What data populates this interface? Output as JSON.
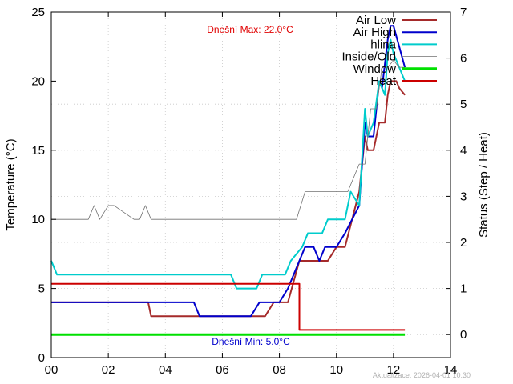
{
  "chart_data": {
    "type": "line",
    "ylabel": "Temperature (°C)",
    "y2label": "Status (Step / Heat)",
    "xlim": [
      0,
      14
    ],
    "ylim": [
      0,
      25
    ],
    "y2lim": [
      -0.5,
      7
    ],
    "grid": true,
    "legend_position": "top-right",
    "x_ticks": [
      {
        "value": 0,
        "label": "00"
      },
      {
        "value": 2,
        "label": "02"
      },
      {
        "value": 4,
        "label": "04"
      },
      {
        "value": 6,
        "label": "06"
      },
      {
        "value": 8,
        "label": "08"
      },
      {
        "value": 10,
        "label": "10"
      },
      {
        "value": 12,
        "label": "12"
      },
      {
        "value": 14,
        "label": "14"
      }
    ],
    "y_ticks": [
      0,
      5,
      10,
      15,
      20,
      25
    ],
    "y2_ticks": [
      0,
      1,
      2,
      3,
      4,
      5,
      6,
      7
    ],
    "annotations": {
      "max": "Dnešní Max: 22.0°C",
      "min": "Dnešní Min: 5.0°C",
      "updated": "Aktualizace: 2026-04-01 10:30"
    },
    "series": [
      {
        "name": "Air Low",
        "color": "#a52a2a",
        "axis": "y1",
        "x": [
          0,
          3.4,
          3.5,
          7.5,
          7.8,
          8.3,
          8.7,
          9.7,
          10.0,
          10.3,
          10.8,
          11.0,
          11.1,
          11.3,
          11.5,
          11.7,
          11.8,
          11.9,
          12.0,
          12.1,
          12.2,
          12.4
        ],
        "y": [
          4.0,
          4.0,
          3.0,
          3.0,
          4.0,
          4.0,
          7.0,
          7.0,
          8.0,
          8.0,
          12.0,
          16.0,
          15.0,
          15.0,
          17.0,
          17.0,
          19.0,
          20.0,
          20.0,
          20.0,
          19.5,
          19.0
        ]
      },
      {
        "name": "Air High",
        "color": "#0000cc",
        "axis": "y1",
        "x": [
          0,
          5.0,
          5.2,
          7.0,
          7.3,
          8.0,
          8.3,
          8.7,
          8.9,
          9.2,
          9.4,
          9.6,
          10.0,
          10.3,
          10.8,
          11.0,
          11.1,
          11.3,
          11.5,
          11.6,
          11.8,
          11.9,
          12.0,
          12.4
        ],
        "y": [
          4.0,
          4.0,
          3.0,
          3.0,
          4.0,
          4.0,
          5.0,
          7.0,
          8.0,
          8.0,
          7.0,
          8.0,
          8.0,
          9.0,
          11.0,
          17.0,
          16.0,
          16.0,
          20.0,
          19.5,
          23.0,
          24.0,
          24.0,
          21.0
        ]
      },
      {
        "name": "hlina",
        "color": "#00cccc",
        "axis": "y1",
        "x": [
          0,
          0.2,
          6.3,
          6.5,
          7.2,
          7.4,
          8.2,
          8.4,
          8.8,
          9.0,
          9.5,
          9.7,
          10.3,
          10.5,
          10.8,
          11.0,
          11.1,
          11.3,
          11.5,
          11.7,
          11.8,
          11.9,
          12.0,
          12.2,
          12.4
        ],
        "y": [
          7.0,
          6.0,
          6.0,
          5.0,
          5.0,
          6.0,
          6.0,
          7.0,
          8.0,
          9.0,
          9.0,
          10.0,
          10.0,
          12.0,
          11.0,
          18.0,
          16.0,
          17.0,
          20.0,
          19.0,
          22.0,
          23.0,
          22.0,
          21.0,
          20.0
        ]
      },
      {
        "name": "Inside/Old",
        "color": "#707070",
        "axis": "y1",
        "x": [
          0,
          1.3,
          1.5,
          1.7,
          2.0,
          2.2,
          2.9,
          3.1,
          3.3,
          3.5,
          8.6,
          8.9,
          10.4,
          10.8,
          11.0,
          11.2,
          11.4,
          11.6,
          11.8,
          12.0,
          12.2,
          12.4
        ],
        "y": [
          10.0,
          10.0,
          11.0,
          10.0,
          11.0,
          11.0,
          10.0,
          10.0,
          11.0,
          10.0,
          10.0,
          12.0,
          12.0,
          14.0,
          14.0,
          18.0,
          18.0,
          21.0,
          21.0,
          21.5,
          21.0,
          21.0
        ]
      },
      {
        "name": "Window",
        "color": "#00e000",
        "axis": "y2",
        "x": [
          0,
          12.4
        ],
        "y": [
          0,
          0
        ]
      },
      {
        "name": "Heat",
        "color": "#cc0000",
        "axis": "y2",
        "x": [
          0,
          8.7,
          8.7,
          12.4
        ],
        "y": [
          1.1,
          1.1,
          0.1,
          0.1
        ]
      }
    ]
  }
}
